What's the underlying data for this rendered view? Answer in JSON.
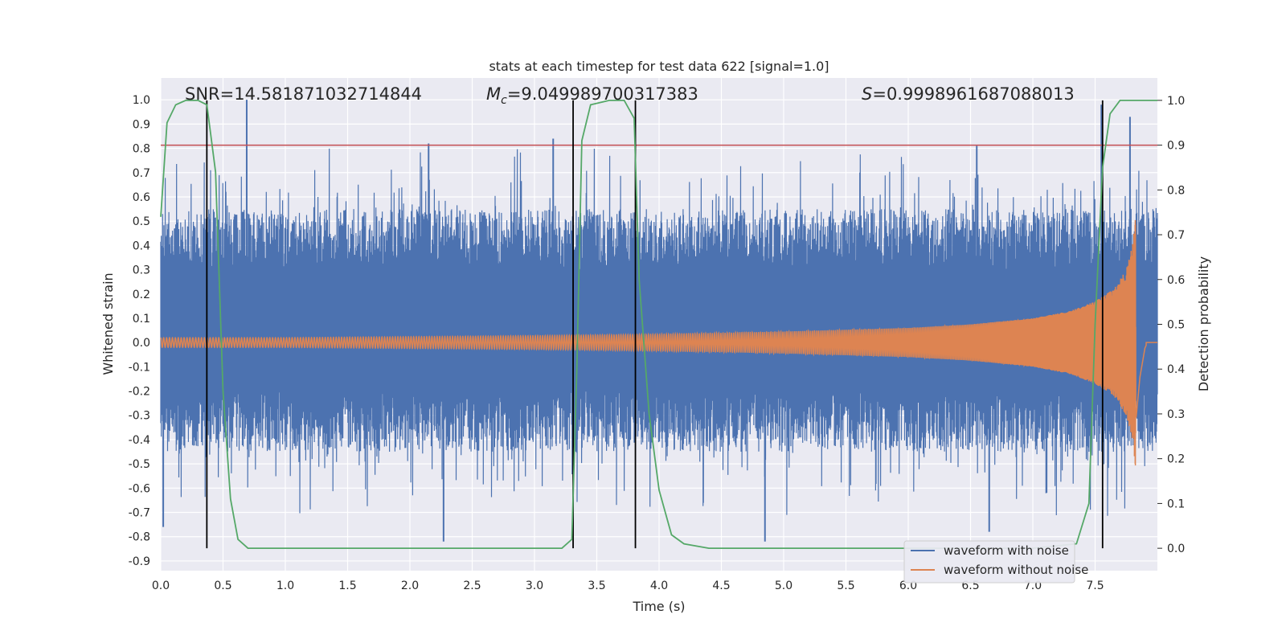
{
  "chart_data": {
    "type": "line",
    "title": "stats at each timestep for test data 622 [signal=1.0]",
    "xlabel": "Time (s)",
    "ylabel": "Whitened strain",
    "ylabel_right": "Detection probability",
    "xlim": [
      0.0,
      8.0
    ],
    "ylim": [
      -0.94,
      1.09
    ],
    "ylim_right": [
      -0.05,
      1.05
    ],
    "x_ticks": [
      "0.0",
      "0.5",
      "1.0",
      "1.5",
      "2.0",
      "2.5",
      "3.0",
      "3.5",
      "4.0",
      "4.5",
      "5.0",
      "5.5",
      "6.0",
      "6.5",
      "7.0",
      "7.5"
    ],
    "y_ticks": [
      "1.0",
      "0.9",
      "0.8",
      "0.7",
      "0.6",
      "0.5",
      "0.4",
      "0.3",
      "0.2",
      "0.1",
      "0.0",
      "-0.1",
      "-0.2",
      "-0.3",
      "-0.4",
      "-0.5",
      "-0.6",
      "-0.7",
      "-0.8",
      "-0.9"
    ],
    "y_ticks_right": [
      "1.0",
      "0.9",
      "0.8",
      "0.7",
      "0.6",
      "0.5",
      "0.4",
      "0.3",
      "0.2",
      "0.1",
      "0.0"
    ],
    "annotations": {
      "snr": "SNR=14.581871032714844",
      "mc_symbol": "M",
      "mc_sub": "c",
      "mc_value": "=9.049989700317383",
      "s_symbol": "S",
      "s_value": "=0.9998961687088013"
    },
    "legend": {
      "position": "lower right",
      "entries": [
        "waveform with noise",
        "waveform without noise"
      ]
    },
    "threshold_line": {
      "axis": "right",
      "y": 0.9,
      "color": "#c44e52"
    },
    "vertical_lines": [
      0.37,
      3.31,
      3.81,
      7.56
    ],
    "series": [
      {
        "name": "waveform with noise",
        "color": "#4c72b0",
        "kind": "noise band",
        "x_range": [
          0.0,
          8.0
        ],
        "typical_envelope": [
          -0.3,
          0.4
        ],
        "peak_values": [
          {
            "x": 0.69,
            "y": 1.0
          },
          {
            "x": 2.15,
            "y": 0.82
          },
          {
            "x": 3.15,
            "y": 0.84
          },
          {
            "x": 6.55,
            "y": 0.81
          },
          {
            "x": 7.55,
            "y": 0.98
          },
          {
            "x": 7.78,
            "y": 0.93
          },
          {
            "x": 2.27,
            "y": -0.82
          },
          {
            "x": 4.85,
            "y": -0.82
          },
          {
            "x": 6.65,
            "y": -0.78
          },
          {
            "x": 0.02,
            "y": -0.76
          }
        ]
      },
      {
        "name": "waveform without noise",
        "color": "#dd8452",
        "kind": "chirp",
        "x_range": [
          0.0,
          7.92
        ],
        "merger_time": 7.83,
        "envelope": [
          [
            0.0,
            0.02
          ],
          [
            1.0,
            0.02
          ],
          [
            2.0,
            0.024
          ],
          [
            3.0,
            0.028
          ],
          [
            4.0,
            0.034
          ],
          [
            5.0,
            0.045
          ],
          [
            6.0,
            0.06
          ],
          [
            6.5,
            0.075
          ],
          [
            7.0,
            0.1
          ],
          [
            7.3,
            0.13
          ],
          [
            7.5,
            0.17
          ],
          [
            7.65,
            0.22
          ],
          [
            7.75,
            0.3
          ],
          [
            7.8,
            0.4
          ],
          [
            7.83,
            0.54
          ],
          [
            7.86,
            0.25
          ],
          [
            7.9,
            0.04
          ],
          [
            7.92,
            0.0
          ]
        ]
      },
      {
        "name": "detection probability",
        "color": "#55a868",
        "axis": "right",
        "x": [
          0.0,
          0.05,
          0.12,
          0.2,
          0.3,
          0.37,
          0.44,
          0.5,
          0.56,
          0.62,
          0.7,
          1.0,
          2.0,
          3.0,
          3.22,
          3.3,
          3.34,
          3.38,
          3.45,
          3.6,
          3.72,
          3.8,
          3.84,
          3.92,
          4.0,
          4.1,
          4.2,
          4.4,
          5.0,
          6.0,
          7.0,
          7.35,
          7.45,
          7.5,
          7.56,
          7.62,
          7.7,
          8.0
        ],
        "y": [
          0.74,
          0.95,
          0.99,
          1.0,
          1.0,
          0.99,
          0.84,
          0.35,
          0.11,
          0.02,
          0.0,
          0.0,
          0.0,
          0.0,
          0.0,
          0.02,
          0.4,
          0.91,
          0.99,
          1.0,
          1.0,
          0.96,
          0.6,
          0.3,
          0.13,
          0.03,
          0.01,
          0.0,
          0.0,
          0.0,
          0.0,
          0.01,
          0.1,
          0.5,
          0.85,
          0.97,
          1.0,
          1.0
        ]
      }
    ]
  }
}
